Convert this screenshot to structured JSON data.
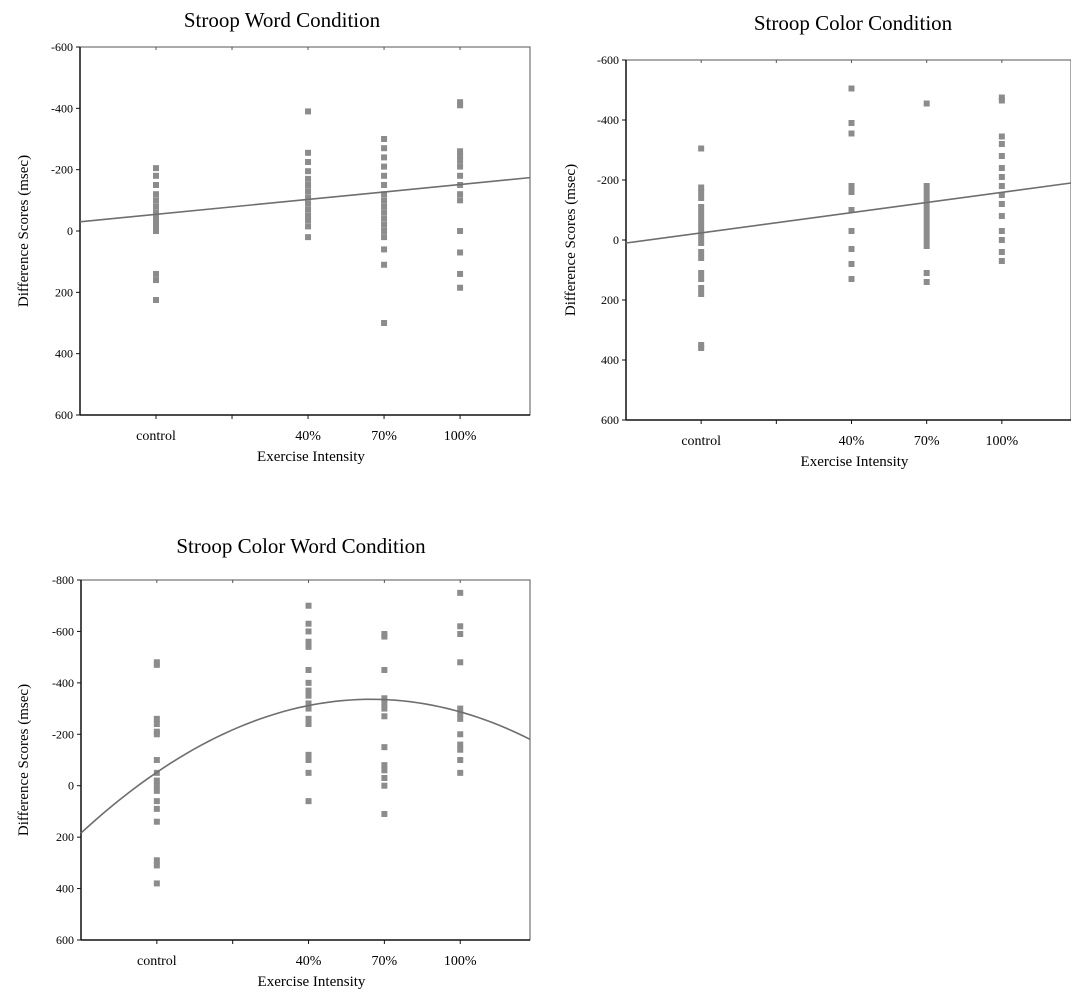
{
  "chart_data": [
    {
      "type": "scatter",
      "title": "Stroop Word Condition",
      "xlabel": "Exercise Intensity",
      "ylabel": "Difference Scores (msec)",
      "categories": [
        "control",
        "40%",
        "70%",
        "100%"
      ],
      "ylim": [
        600,
        -600
      ],
      "yticks": [
        "-600",
        "-400",
        "-200",
        "0",
        "200",
        "400",
        "600"
      ],
      "fit": {
        "type": "linear",
        "x": [
          0,
          5.92
        ],
        "y": [
          -30,
          -174
        ]
      },
      "series": [
        {
          "x": 1,
          "values": [
            -205,
            -180,
            -150,
            -120,
            -100,
            -80,
            -60,
            -45,
            -30,
            -15,
            0,
            140,
            160,
            225
          ]
        },
        {
          "x": 3,
          "values": [
            -390,
            -255,
            -225,
            -195,
            -170,
            -150,
            -130,
            -110,
            -90,
            -70,
            -50,
            -35,
            -15,
            20
          ]
        },
        {
          "x": 4,
          "values": [
            -300,
            -270,
            -240,
            -210,
            -180,
            -150,
            -120,
            -100,
            -80,
            -60,
            -40,
            -20,
            0,
            20,
            60,
            110,
            300
          ]
        },
        {
          "x": 5,
          "values": [
            -420,
            -410,
            -260,
            -245,
            -230,
            -210,
            -180,
            -150,
            -120,
            -100,
            0,
            70,
            140,
            185
          ]
        }
      ]
    },
    {
      "type": "scatter",
      "title": "Stroop Color Condition",
      "xlabel": "Exercise Intensity",
      "ylabel": "Difference Scores (msec)",
      "categories": [
        "control",
        "40%",
        "70%",
        "100%"
      ],
      "ylim": [
        600,
        -600
      ],
      "yticks": [
        "-600",
        "-400",
        "-200",
        "0",
        "200",
        "400",
        "600"
      ],
      "fit": {
        "type": "linear",
        "x": [
          0,
          5.92
        ],
        "y": [
          10,
          -190
        ]
      },
      "series": [
        {
          "x": 1,
          "values": [
            -305,
            -175,
            -160,
            -140,
            -110,
            -90,
            -70,
            -50,
            -30,
            -10,
            10,
            40,
            60,
            110,
            130,
            160,
            180,
            350,
            360
          ]
        },
        {
          "x": 3,
          "values": [
            -505,
            -390,
            -355,
            -180,
            -160,
            -100,
            -30,
            30,
            80,
            130
          ]
        },
        {
          "x": 4,
          "values": [
            -455,
            -180,
            -160,
            -140,
            -120,
            -100,
            -80,
            -60,
            -40,
            -20,
            0,
            20,
            110,
            140
          ]
        },
        {
          "x": 5,
          "values": [
            -475,
            -465,
            -345,
            -320,
            -280,
            -240,
            -210,
            -180,
            -150,
            -120,
            -80,
            -30,
            0,
            40,
            70
          ]
        }
      ]
    },
    {
      "type": "scatter",
      "title": "Stroop Color Word Condition",
      "xlabel": "Exercise Intensity",
      "ylabel": "Difference Scores (msec)",
      "categories": [
        "control",
        "40%",
        "70%",
        "100%"
      ],
      "ylim": [
        600,
        -800
      ],
      "yticks": [
        "-800",
        "-600",
        "-400",
        "-200",
        "0",
        "200",
        "400",
        "600"
      ],
      "fit": {
        "type": "quadratic",
        "x": [
          0,
          1,
          2,
          3,
          4,
          5,
          5.92
        ],
        "y": [
          170,
          -40,
          -200,
          -310,
          -355,
          -300,
          -165
        ]
      },
      "series": [
        {
          "x": 1,
          "values": [
            -480,
            -470,
            -260,
            -240,
            -210,
            -200,
            -100,
            -50,
            -20,
            0,
            20,
            60,
            90,
            140,
            290,
            310,
            380
          ]
        },
        {
          "x": 3,
          "values": [
            -700,
            -630,
            -600,
            -560,
            -540,
            -450,
            -400,
            -370,
            -350,
            -320,
            -300,
            -260,
            -240,
            -120,
            -100,
            -50,
            60
          ]
        },
        {
          "x": 4,
          "values": [
            -590,
            -580,
            -450,
            -340,
            -320,
            -300,
            -270,
            -150,
            -80,
            -60,
            -30,
            0,
            110
          ]
        },
        {
          "x": 5,
          "values": [
            -750,
            -620,
            -590,
            -480,
            -300,
            -280,
            -260,
            -200,
            -160,
            -140,
            -100,
            -50
          ]
        }
      ]
    }
  ]
}
